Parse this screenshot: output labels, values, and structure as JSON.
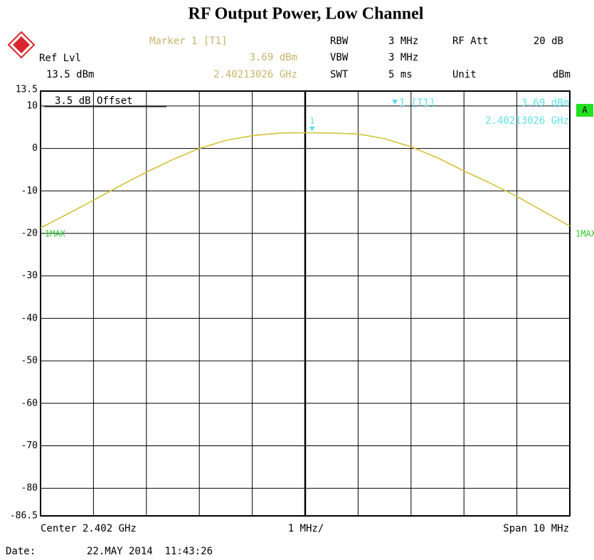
{
  "chart_data": {
    "type": "line",
    "title": "RF Output Power, Low Channel",
    "header": {
      "marker_title": "Marker 1 [T1]",
      "ref_label": "Ref Lvl",
      "ref_value": "13.5 dBm",
      "rbw_label": "RBW",
      "rbw_value": "3 MHz",
      "vbw_label": "VBW",
      "vbw_value": "3 MHz",
      "swt_label": "SWT",
      "swt_value": "5 ms",
      "att_label": "RF Att",
      "att_value": "20 dB",
      "unit_label": "Unit",
      "unit_value": "dBm"
    },
    "offset_note": "3.5 dB Offset",
    "marker": {
      "name": "1",
      "tag": "1 [T1]",
      "x": 2.40213026,
      "x_label": "2.40213026 GHz",
      "value": 3.69,
      "value_label": "3.69 dBm"
    },
    "status_badge": "A",
    "trace_label": "1MAX",
    "footer": {
      "center": "Center 2.402 GHz",
      "div": "1 MHz/",
      "span": "Span 10 MHz",
      "date_label": "Date:",
      "date": "22.MAY 2014  11:43:26"
    },
    "x": [
      2.397,
      2.3975,
      2.398,
      2.3985,
      2.399,
      2.3995,
      2.4,
      2.4005,
      2.401,
      2.4015,
      2.402,
      2.4025,
      2.403,
      2.4035,
      2.404,
      2.4045,
      2.405,
      2.4055,
      2.406,
      2.4065,
      2.407
    ],
    "series": [
      {
        "name": "1MAX",
        "color": "#d4c238",
        "values": [
          -18.7,
          -15.5,
          -12.2,
          -8.8,
          -5.6,
          -2.6,
          0,
          1.9,
          3.0,
          3.6,
          3.7,
          3.6,
          3.4,
          2.3,
          0.4,
          -2.2,
          -5.3,
          -8.2,
          -11.3,
          -14.8,
          -18.3
        ]
      }
    ],
    "xlim": [
      2.397,
      2.407
    ],
    "xticks": [
      2.397,
      2.398,
      2.399,
      2.4,
      2.401,
      2.402,
      2.403,
      2.404,
      2.405,
      2.406,
      2.407
    ],
    "ylim": [
      -86.5,
      13.5
    ],
    "yticks": [
      13.5,
      10,
      0,
      -10,
      -20,
      -30,
      -40,
      -50,
      -60,
      -70,
      -80,
      -86.5
    ],
    "grid": true
  }
}
